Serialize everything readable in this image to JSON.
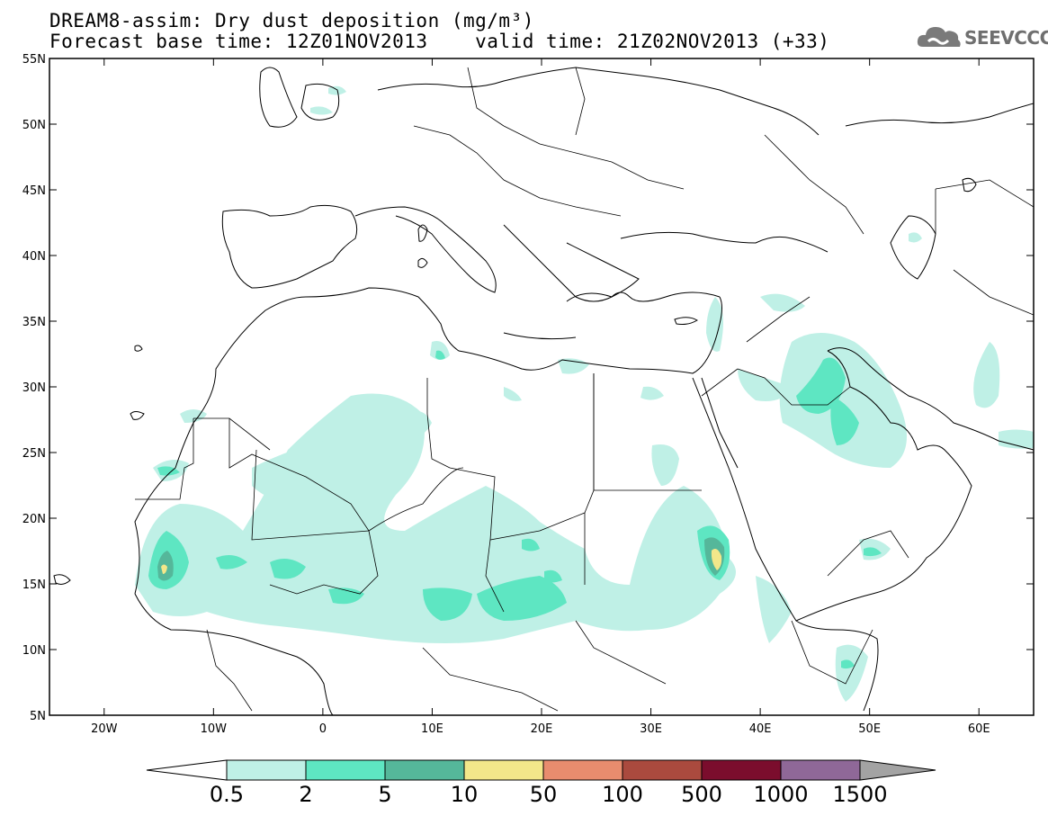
{
  "title": {
    "line1": "DREAM8-assim: Dry dust deposition (mg/m³)",
    "base_time": "Forecast base time: 12Z01NOV2013",
    "valid_time": "valid time: 21Z02NOV2013 (+33)"
  },
  "logo": {
    "text": "SEEVCCC",
    "icon": "cloud-icon"
  },
  "map": {
    "lat_ticks": [
      "55N",
      "50N",
      "45N",
      "40N",
      "35N",
      "30N",
      "25N",
      "20N",
      "15N",
      "10N",
      "5N"
    ],
    "lon_ticks": [
      "20W",
      "10W",
      "0",
      "10E",
      "20E",
      "30E",
      "40E",
      "50E",
      "60E"
    ],
    "lat_range": [
      5,
      55
    ],
    "lon_range": [
      -25,
      65
    ]
  },
  "colorbar": {
    "labels": [
      "0.5",
      "2",
      "5",
      "10",
      "50",
      "100",
      "500",
      "1000",
      "1500"
    ],
    "colors": [
      "#bff0e6",
      "#5ee6c2",
      "#55b79a",
      "#f3e78a",
      "#e88c6e",
      "#aa4a3e",
      "#7b0d2d",
      "#8f6898",
      "#a3a3a3"
    ],
    "under_color": "#ffffff"
  },
  "colors": {
    "coast": "#000000",
    "frame": "#000000"
  }
}
